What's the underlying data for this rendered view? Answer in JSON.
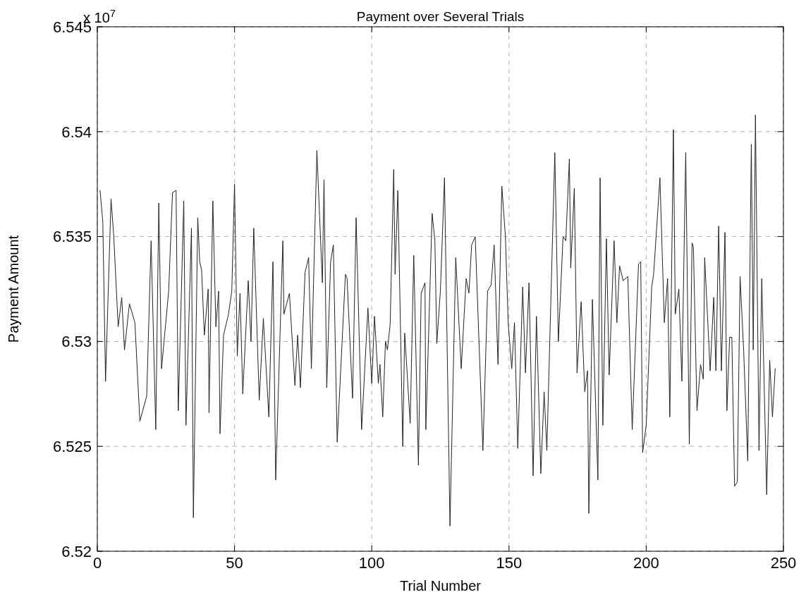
{
  "chart_data": {
    "type": "line",
    "title": "Payment over Several Trials",
    "xlabel": "Trial Number",
    "ylabel": "Payment Amount",
    "annotations": [
      "x 10$^{7}$"
    ],
    "x": [
      1,
      2,
      3,
      5,
      6,
      7.6,
      8.9,
      9.9,
      11.7,
      13.7,
      15.5,
      18,
      19.6,
      21.3,
      22.4,
      23.4,
      26,
      27.4,
      28.7,
      29.5,
      31.5,
      32.3,
      34.3,
      35,
      36.6,
      37.3,
      38,
      39,
      40.4,
      40.7,
      42.1,
      43.2,
      44.2,
      44.7,
      46,
      47.8,
      49,
      50,
      51,
      52,
      53,
      55,
      56,
      57,
      59,
      60.5,
      62.5,
      64,
      65,
      67.6,
      68,
      70,
      72,
      73,
      74,
      75.7,
      77,
      78,
      80,
      82,
      82.6,
      83.6,
      85,
      86,
      87.4,
      90.4,
      91,
      93,
      94.3,
      96.3,
      98.6,
      100,
      101,
      102.4,
      103,
      104,
      105,
      105.7,
      106.7,
      108,
      108.5,
      109.5,
      111.3,
      112,
      114,
      115.3,
      117,
      118,
      119.4,
      119.7,
      122,
      123,
      123.7,
      125,
      126.5,
      128.5,
      130.6,
      132.6,
      134.4,
      135.4,
      136.4,
      137.7,
      140.5,
      142.2,
      143.5,
      144.6,
      146,
      147.4,
      148.7,
      149.7,
      151,
      152,
      153.2,
      155,
      156,
      157.3,
      158.8,
      160,
      161.6,
      162.8,
      163.8,
      166.7,
      168,
      169.7,
      170.7,
      172,
      172.5,
      173.8,
      174.8,
      176.3,
      177.6,
      178.6,
      179.1,
      180.4,
      182.4,
      183.2,
      184.2,
      185.5,
      186.5,
      188.3,
      189.3,
      190.3,
      191.6,
      193.3,
      194.9,
      197.2,
      198,
      198.7,
      200,
      202,
      202.7,
      205,
      206.6,
      207.8,
      208.6,
      209.9,
      210.6,
      211.9,
      213,
      214.4,
      215.7,
      216.7,
      217.2,
      218.5,
      219.8,
      220.8,
      221.3,
      223.3,
      224.6,
      225.4,
      226.4,
      227.4,
      228.7,
      229.4,
      230.4,
      231.2,
      232.2,
      233.2,
      234.2,
      235.5,
      237,
      238.3,
      239,
      239.8,
      241.1,
      242.1,
      243.9,
      245,
      246,
      247
    ],
    "series": [
      {
        "color": "#222222",
        "values": [
          6.5372,
          6.5357,
          6.5281,
          6.5368,
          6.535,
          6.5307,
          6.5321,
          6.5296,
          6.5318,
          6.5309,
          6.5262,
          6.5274,
          6.5348,
          6.5258,
          6.5366,
          6.5287,
          6.5324,
          6.5371,
          6.5372,
          6.5267,
          6.5367,
          6.526,
          6.5354,
          6.5216,
          6.5359,
          6.5338,
          6.5334,
          6.5303,
          6.5325,
          6.5266,
          6.5367,
          6.5307,
          6.5324,
          6.5256,
          6.5303,
          6.5313,
          6.5324,
          6.5375,
          6.5293,
          6.5323,
          6.5275,
          6.5329,
          6.53,
          6.5354,
          6.5272,
          6.5311,
          6.5264,
          6.5338,
          6.5234,
          6.5348,
          6.5313,
          6.5323,
          6.5279,
          6.5303,
          6.5278,
          6.5333,
          6.534,
          6.5287,
          6.5391,
          6.5328,
          6.5377,
          6.5278,
          6.5338,
          6.5346,
          6.5252,
          6.5332,
          6.533,
          6.5273,
          6.5359,
          6.5258,
          6.5316,
          6.528,
          6.5312,
          6.528,
          6.5289,
          6.5264,
          6.53,
          6.5296,
          6.5308,
          6.5382,
          6.5332,
          6.5372,
          6.525,
          6.5304,
          6.5261,
          6.5341,
          6.5241,
          6.5323,
          6.5328,
          6.5258,
          6.5361,
          6.5348,
          6.5299,
          6.5324,
          6.5378,
          6.5212,
          6.534,
          6.5287,
          6.533,
          6.5323,
          6.5346,
          6.535,
          6.5248,
          6.5324,
          6.5327,
          6.5346,
          6.5289,
          6.5374,
          6.535,
          6.5309,
          6.5287,
          6.5309,
          6.5249,
          6.5326,
          6.5285,
          6.5328,
          6.5236,
          6.5312,
          6.5237,
          6.5276,
          6.5248,
          6.539,
          6.53,
          6.535,
          6.5348,
          6.5387,
          6.5335,
          6.5373,
          6.5285,
          6.5319,
          6.5276,
          6.5286,
          6.5218,
          6.532,
          6.5234,
          6.5378,
          6.526,
          6.5349,
          6.5284,
          6.5348,
          6.5309,
          6.5336,
          6.5329,
          6.5331,
          6.5258,
          6.5337,
          6.5338,
          6.5247,
          6.526,
          6.5326,
          6.5332,
          6.5378,
          6.5309,
          6.533,
          6.5264,
          6.5401,
          6.5313,
          6.5325,
          6.5281,
          6.539,
          6.5251,
          6.5347,
          6.5345,
          6.5267,
          6.5289,
          6.5282,
          6.534,
          6.5286,
          6.5321,
          6.5286,
          6.5355,
          6.5286,
          6.5352,
          6.5267,
          6.5302,
          6.5302,
          6.5231,
          6.5233,
          6.5331,
          6.5296,
          6.5243,
          6.5394,
          6.5296,
          6.5408,
          6.5248,
          6.533,
          6.5227,
          6.5291,
          6.5264,
          6.5287
        ]
      }
    ],
    "xlim": [
      0,
      250
    ],
    "xticks": [
      0,
      50,
      100,
      150,
      200,
      250
    ],
    "ylim": [
      6.52,
      6.545
    ],
    "yticks": [
      6.52,
      6.525,
      6.53,
      6.535,
      6.54,
      6.545
    ],
    "grid": true,
    "marker": "none",
    "line_style": "solid"
  }
}
